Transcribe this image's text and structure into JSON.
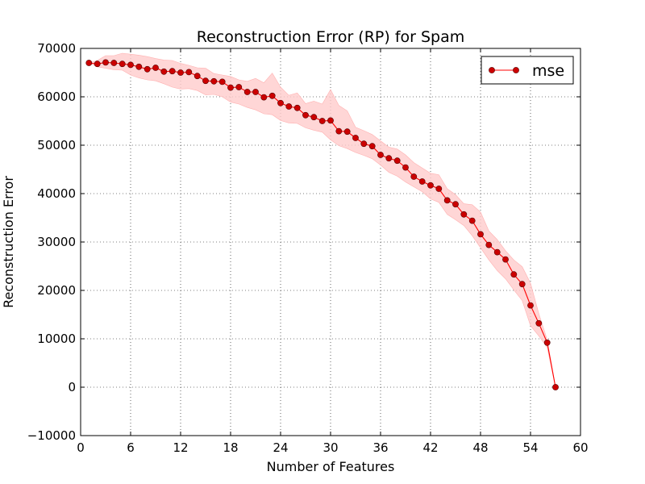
{
  "chart_data": {
    "type": "line",
    "title": "Reconstruction Error (RP) for Spam",
    "xlabel": "Number of Features",
    "ylabel": "Reconstruction Error",
    "xlim": [
      0,
      60
    ],
    "ylim": [
      -10000,
      70000
    ],
    "xticks": [
      0,
      6,
      12,
      18,
      24,
      30,
      36,
      42,
      48,
      54,
      60
    ],
    "yticks": [
      -10000,
      0,
      10000,
      20000,
      30000,
      40000,
      50000,
      60000,
      70000
    ],
    "xtick_labels": [
      "0",
      "6",
      "12",
      "18",
      "24",
      "30",
      "36",
      "42",
      "48",
      "54",
      "60"
    ],
    "ytick_labels": [
      "−10000",
      "0",
      "10000",
      "20000",
      "30000",
      "40000",
      "50000",
      "60000",
      "70000"
    ],
    "grid": true,
    "legend_position": "top-right",
    "series": [
      {
        "name": "mse",
        "color": "#ff0000",
        "marker_color": "#cc0000",
        "band_color": "#ffcccc",
        "x": [
          1,
          2,
          3,
          4,
          5,
          6,
          7,
          8,
          9,
          10,
          11,
          12,
          13,
          14,
          15,
          16,
          17,
          18,
          19,
          20,
          21,
          22,
          23,
          24,
          25,
          26,
          27,
          28,
          29,
          30,
          31,
          32,
          33,
          34,
          35,
          36,
          37,
          38,
          39,
          40,
          41,
          42,
          43,
          44,
          45,
          46,
          47,
          48,
          49,
          50,
          51,
          52,
          53,
          54,
          55,
          56,
          57
        ],
        "values": [
          67000,
          66800,
          67100,
          67000,
          66800,
          66600,
          66200,
          65700,
          66000,
          65200,
          65300,
          65000,
          65100,
          64300,
          63300,
          63200,
          63100,
          61900,
          62000,
          61000,
          61000,
          59900,
          60200,
          58700,
          58000,
          57700,
          56200,
          55800,
          55000,
          55100,
          52900,
          52800,
          51500,
          50300,
          49800,
          48000,
          47300,
          46800,
          45400,
          43500,
          42500,
          41700,
          41000,
          38600,
          37800,
          35700,
          34400,
          31600,
          29400,
          27900,
          26400,
          23300,
          21300,
          16900,
          13200,
          9200,
          0
        ],
        "band_upper": [
          67000,
          67500,
          68500,
          68500,
          69000,
          68800,
          68600,
          68300,
          67900,
          67600,
          67500,
          66900,
          66500,
          66000,
          65900,
          64800,
          64500,
          64200,
          63500,
          63200,
          63800,
          62900,
          64900,
          62000,
          60300,
          60800,
          58600,
          59100,
          58500,
          61500,
          58200,
          57100,
          53700,
          53000,
          52200,
          50900,
          49600,
          49200,
          48000,
          46400,
          45300,
          44200,
          43900,
          41000,
          39800,
          37900,
          37700,
          36200,
          32300,
          30500,
          28200,
          26300,
          24900,
          21500,
          15200,
          9800,
          0
        ],
        "band_lower": [
          67000,
          66200,
          65900,
          65600,
          65500,
          64500,
          63900,
          63500,
          63300,
          62700,
          62000,
          61600,
          61700,
          61300,
          60400,
          60500,
          60000,
          58900,
          58500,
          57800,
          57300,
          56500,
          56300,
          55100,
          54600,
          54500,
          53600,
          53100,
          52700,
          51100,
          49900,
          49300,
          48500,
          47900,
          47200,
          45900,
          44400,
          43600,
          42400,
          41400,
          40400,
          38900,
          38200,
          35700,
          34600,
          33400,
          31300,
          28800,
          26300,
          24100,
          22400,
          20100,
          17900,
          12700,
          10600,
          8200,
          0
        ]
      }
    ]
  }
}
